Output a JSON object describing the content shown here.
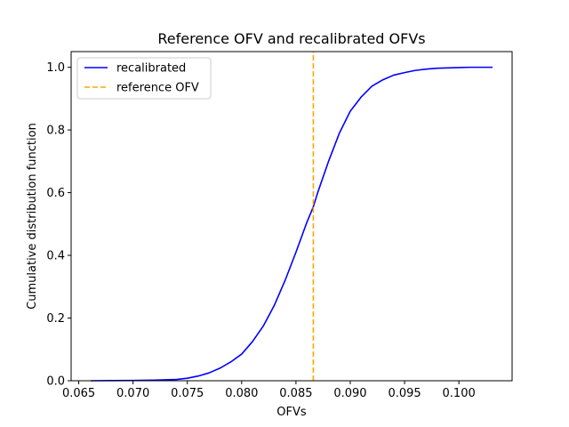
{
  "chart_data": {
    "type": "line",
    "title": "Reference OFV and recalibrated OFVs",
    "xlabel": "OFVs",
    "ylabel": "Cumulative distribution function",
    "xlim": [
      0.0643,
      0.1049
    ],
    "ylim": [
      0.0,
      1.05
    ],
    "xticks": [
      "0.065",
      "0.070",
      "0.075",
      "0.080",
      "0.085",
      "0.090",
      "0.095",
      "0.100"
    ],
    "xtick_values": [
      0.065,
      0.07,
      0.075,
      0.08,
      0.085,
      0.09,
      0.095,
      0.1
    ],
    "yticks": [
      "0.0",
      "0.2",
      "0.4",
      "0.6",
      "0.8",
      "1.0"
    ],
    "ytick_values": [
      0.0,
      0.2,
      0.4,
      0.6,
      0.8,
      1.0
    ],
    "grid": false,
    "legend_position": "top-left",
    "series": [
      {
        "name": "recalibrated",
        "color": "#0000ff",
        "style": "solid",
        "x": [
          0.0661,
          0.068,
          0.07,
          0.072,
          0.074,
          0.075,
          0.076,
          0.077,
          0.078,
          0.079,
          0.08,
          0.081,
          0.082,
          0.083,
          0.084,
          0.085,
          0.086,
          0.0866,
          0.087,
          0.088,
          0.089,
          0.09,
          0.091,
          0.092,
          0.093,
          0.094,
          0.095,
          0.096,
          0.097,
          0.098,
          0.099,
          0.1,
          0.101,
          0.102,
          0.1031
        ],
        "y": [
          0.0,
          0.0005,
          0.001,
          0.002,
          0.004,
          0.008,
          0.015,
          0.025,
          0.04,
          0.06,
          0.085,
          0.125,
          0.175,
          0.24,
          0.32,
          0.41,
          0.505,
          0.555,
          0.6,
          0.7,
          0.79,
          0.86,
          0.905,
          0.94,
          0.96,
          0.975,
          0.983,
          0.99,
          0.994,
          0.997,
          0.998,
          0.999,
          1.0,
          1.0,
          1.0
        ]
      },
      {
        "name": "reference OFV",
        "color": "#ffa500",
        "style": "dashed",
        "x": [
          0.0866,
          0.0866
        ],
        "y": [
          0.0,
          1.05
        ]
      }
    ]
  }
}
